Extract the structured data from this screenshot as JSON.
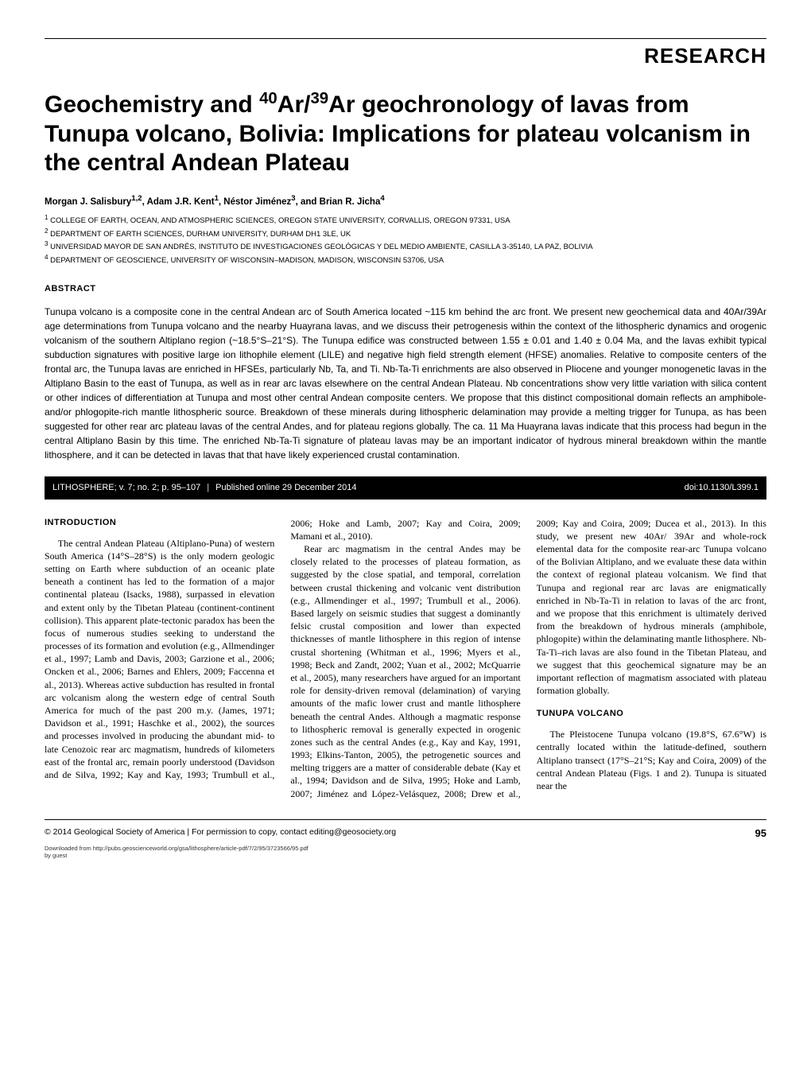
{
  "header": {
    "section_label": "RESEARCH"
  },
  "title_html": "Geochemistry and <sup>40</sup>Ar/<sup>39</sup>Ar geochronology of lavas from Tunupa volcano, Bolivia: Implications for plateau volcanism in the central Andean Plateau",
  "authors_html": "Morgan J. Salisbury<sup>1,2</sup>, Adam J.R. Kent<sup>1</sup>, Néstor Jiménez<sup>3</sup>, and Brian R. Jicha<sup>4</sup>",
  "affiliations": [
    "1 COLLEGE OF EARTH, OCEAN, AND ATMOSPHERIC SCIENCES, OREGON STATE UNIVERSITY, CORVALLIS, OREGON 97331, USA",
    "2 DEPARTMENT OF EARTH SCIENCES, DURHAM UNIVERSITY, DURHAM DH1 3LE, UK",
    "3 UNIVERSIDAD MAYOR DE SAN ANDRÉS, INSTITUTO DE INVESTIGACIONES GEOLÓGICAS Y DEL MEDIO AMBIENTE, CASILLA 3-35140, LA PAZ, BOLIVIA",
    "4 DEPARTMENT OF GEOSCIENCE, UNIVERSITY OF WISCONSIN–MADISON, MADISON, WISCONSIN 53706, USA"
  ],
  "abstract": {
    "heading": "ABSTRACT",
    "text": "Tunupa volcano is a composite cone in the central Andean arc of South America located ~115 km behind the arc front. We present new geochemical data and 40Ar/39Ar age determinations from Tunupa volcano and the nearby Huayrana lavas, and we discuss their petrogenesis within the context of the lithospheric dynamics and orogenic volcanism of the southern Altiplano region (~18.5°S–21°S). The Tunupa edifice was constructed between 1.55 ± 0.01 and 1.40 ± 0.04 Ma, and the lavas exhibit typical subduction signatures with positive large ion lithophile element (LILE) and negative high field strength element (HFSE) anomalies. Relative to composite centers of the frontal arc, the Tunupa lavas are enriched in HFSEs, particularly Nb, Ta, and Ti. Nb-Ta-Ti enrichments are also observed in Pliocene and younger monogenetic lavas in the Altiplano Basin to the east of Tunupa, as well as in rear arc lavas elsewhere on the central Andean Plateau. Nb concentrations show very little variation with silica content or other indices of differentiation at Tunupa and most other central Andean composite centers. We propose that this distinct compositional domain reflects an amphibole- and/or phlogopite-rich mantle lithospheric source. Breakdown of these minerals during lithospheric delamination may provide a melting trigger for Tunupa, as has been suggested for other rear arc plateau lavas of the central Andes, and for plateau regions globally. The ca. 11 Ma Huayrana lavas indicate that this process had begun in the central Altiplano Basin by this time. The enriched Nb-Ta-Ti signature of plateau lavas may be an important indicator of hydrous mineral breakdown within the mantle lithosphere, and it can be detected in lavas that that have likely experienced crustal contamination."
  },
  "pubbar": {
    "left1": "LITHOSPHERE; v. 7; no. 2; p. 95–107",
    "left2": "Published online 29 December 2014",
    "doi": "doi:10.1130/L399.1"
  },
  "sections": {
    "intro_heading": "INTRODUCTION",
    "intro_p1": "The central Andean Plateau (Altiplano-Puna) of western South America (14°S–28°S) is the only modern geologic setting on Earth where subduction of an oceanic plate beneath a continent has led to the formation of a major continental plateau (Isacks, 1988), surpassed in elevation and extent only by the Tibetan Plateau (continent-continent collision). This apparent plate-tectonic paradox has been the focus of numerous studies seeking to understand the processes of its formation and evolution (e.g., Allmendinger et al., 1997; Lamb and Davis, 2003; Garzione et al., 2006; Oncken et al., 2006; Barnes and Ehlers, 2009; Faccenna et al., 2013). Whereas active subduction has resulted in frontal arc volcanism along the western edge of central South America for much of the past 200 m.y. (James, 1971; Davidson et al., 1991; Haschke et al., 2002), the sources and processes involved in producing the abundant mid- to late Cenozoic rear arc magmatism, hundreds of kilometers east of the frontal arc, remain poorly understood (Davidson and de Silva, 1992; Kay and Kay, 1993; Trumbull et al., 2006; Hoke and Lamb, 2007; Kay and Coira, 2009; Mamani et al., 2010).",
    "intro_p2": "Rear arc magmatism in the central Andes may be closely related to the processes of plateau formation, as suggested by the close spatial, and temporal, correlation between crustal thickening and volcanic vent distribution (e.g., Allmendinger et al., 1997; Trumbull et al., 2006). Based largely on seismic studies that suggest a dominantly felsic crustal composition and lower than expected thicknesses of mantle lithosphere in this region of intense crustal shortening (Whitman et al., 1996; Myers et al., 1998; Beck and Zandt, 2002; Yuan et al., 2002; McQuarrie et al., 2005), many researchers have argued for an important role for density-driven removal (delamination) of varying amounts of the mafic lower crust and mantle lithosphere beneath the central Andes. Although a magmatic response to lithospheric removal is generally expected in orogenic zones such as the central Andes (e.g., Kay and Kay, 1991, 1993; Elkins-Tanton, 2005), the petrogenetic sources and melting triggers are a matter of considerable debate (Kay et al., 1994; Davidson and de Silva, 1995; Hoke and Lamb, 2007; Jiménez and López-Velásquez, 2008; Drew et al., 2009; Kay and Coira, 2009; Ducea et al., 2013). In this study, we present new 40Ar/ 39Ar and whole-rock elemental data for the composite rear-arc Tunupa volcano of the Bolivian Altiplano, and we evaluate these data within the context of regional plateau volcanism. We find that Tunupa and regional rear arc lavas are enigmatically enriched in Nb-Ta-Ti in relation to lavas of the arc front, and we propose that this enrichment is ultimately derived from the breakdown of hydrous minerals (amphibole, phlogopite) within the delaminating mantle lithosphere. Nb-Ta-Ti–rich lavas are also found in the Tibetan Plateau, and we suggest that this geochemical signature may be an important reflection of magmatism associated with plateau formation globally.",
    "tunupa_heading": "TUNUPA VOLCANO",
    "tunupa_p1": "The Pleistocene Tunupa volcano (19.8°S, 67.6°W) is centrally located within the latitude-defined, southern Altiplano transect (17°S–21°S; Kay and Coira, 2009) of the central Andean Plateau (Figs. 1 and 2). Tunupa is situated near the"
  },
  "footer": {
    "copyright": "© 2014 Geological Society of America",
    "permission": "For permission to copy, contact editing@geosociety.org",
    "page": "95",
    "download1": "Downloaded from http://pubs.geoscienceworld.org/gsa/lithosphere/article-pdf/7/2/95/3723566/95.pdf",
    "download2": "by guest"
  }
}
